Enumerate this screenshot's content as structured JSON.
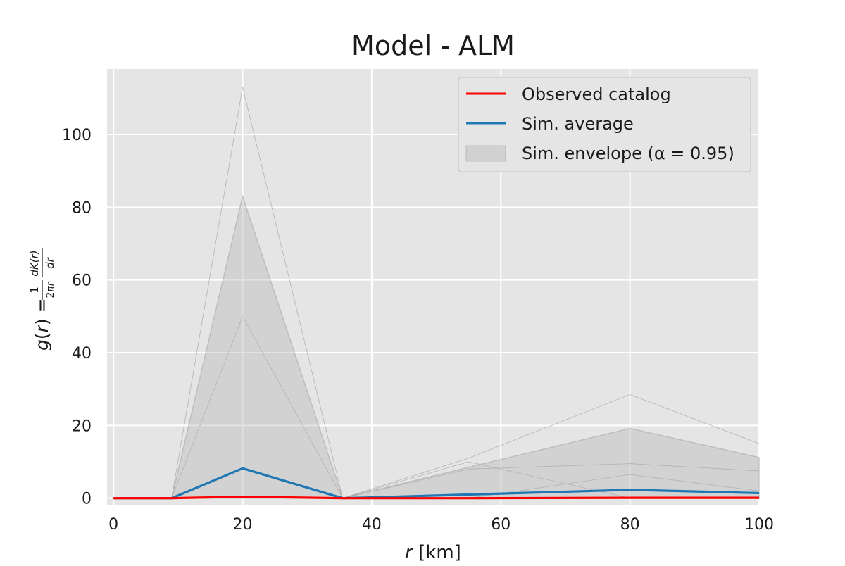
{
  "chart_data": {
    "type": "line",
    "title": "Model - ALM",
    "xlabel": "r  [km]",
    "ylabel": "g(r) = 1/2πr · dK(r)/dr",
    "xlim": [
      -1,
      100
    ],
    "ylim": [
      -2,
      118
    ],
    "x": [
      0,
      9,
      20,
      35.5,
      55,
      80,
      100
    ],
    "x_ticks": [
      0,
      20,
      40,
      60,
      80,
      100
    ],
    "y_ticks": [
      0,
      20,
      40,
      60,
      80,
      100
    ],
    "x_tick_labels": [
      "0",
      "20",
      "40",
      "60",
      "80",
      "100"
    ],
    "y_tick_labels": [
      "0",
      "20",
      "40",
      "60",
      "80",
      "100"
    ],
    "grid": true,
    "legend_position": "top-right",
    "series": [
      {
        "name": "Observed catalog",
        "color": "#ff0000",
        "values": [
          0,
          0,
          0.4,
          0,
          0,
          0.1,
          0.1
        ]
      },
      {
        "name": "Sim. average",
        "color": "#1f77b4",
        "values": [
          0,
          0,
          8.2,
          0,
          1.0,
          2.3,
          1.4
        ]
      }
    ],
    "envelope": {
      "name": "Sim. envelope (α = 0.95)",
      "lower": [
        0,
        0,
        0,
        0,
        0,
        0,
        0
      ],
      "upper": [
        0,
        0,
        83,
        0,
        8.5,
        19.2,
        11.2
      ]
    },
    "simulations": [
      [
        0,
        0,
        113,
        0,
        11,
        28.5,
        15
      ],
      [
        0,
        0,
        50,
        0,
        8,
        9.5,
        7.5
      ],
      [
        0,
        0,
        0,
        0,
        0,
        6.5,
        2
      ],
      [
        0,
        0,
        0,
        0,
        10,
        0,
        0
      ]
    ]
  }
}
